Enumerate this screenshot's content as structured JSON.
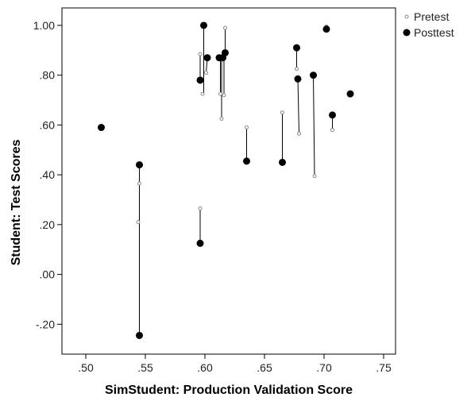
{
  "chart_data": {
    "type": "scatter",
    "xlabel": "SimStudent: Production Validation Score",
    "ylabel": "Student: Test Scores",
    "xlim": [
      0.48,
      0.76
    ],
    "ylim": [
      -0.32,
      1.07
    ],
    "x_ticks": [
      0.5,
      0.55,
      0.6,
      0.65,
      0.7,
      0.75
    ],
    "x_tick_labels": [
      ".50",
      ".55",
      ".60",
      ".65",
      ".70",
      ".75"
    ],
    "y_ticks": [
      -0.2,
      0.0,
      0.2,
      0.4,
      0.6,
      0.8,
      1.0
    ],
    "y_tick_labels": [
      "-.20",
      ".00",
      ".20",
      ".40",
      ".60",
      ".80",
      "1.00"
    ],
    "grid": false,
    "legend_position": "right, outside plot, top",
    "series": [
      {
        "name": "Pretest",
        "marker": "small open circle",
        "color": "#888888",
        "points": [
          [
            0.545,
            0.365
          ],
          [
            0.544,
            0.21
          ],
          [
            0.596,
            0.265
          ],
          [
            0.596,
            0.885
          ],
          [
            0.598,
            0.725
          ],
          [
            0.601,
            0.81
          ],
          [
            0.613,
            0.725
          ],
          [
            0.614,
            0.625
          ],
          [
            0.616,
            0.72
          ],
          [
            0.617,
            0.99
          ],
          [
            0.635,
            0.59
          ],
          [
            0.665,
            0.65
          ],
          [
            0.677,
            0.825
          ],
          [
            0.679,
            0.565
          ],
          [
            0.692,
            0.395
          ],
          [
            0.702,
            0.995
          ],
          [
            0.707,
            0.58
          ]
        ]
      },
      {
        "name": "Posttest",
        "marker": "filled circle",
        "color": "#000000",
        "points": [
          [
            0.513,
            0.59
          ],
          [
            0.545,
            0.44
          ],
          [
            0.545,
            -0.245
          ],
          [
            0.596,
            0.125
          ],
          [
            0.596,
            0.78
          ],
          [
            0.599,
            1.0
          ],
          [
            0.602,
            0.87
          ],
          [
            0.612,
            0.87
          ],
          [
            0.615,
            0.87
          ],
          [
            0.617,
            0.89
          ],
          [
            0.635,
            0.455
          ],
          [
            0.665,
            0.45
          ],
          [
            0.677,
            0.91
          ],
          [
            0.678,
            0.785
          ],
          [
            0.691,
            0.8
          ],
          [
            0.702,
            0.985
          ],
          [
            0.707,
            0.64
          ],
          [
            0.722,
            0.725
          ]
        ]
      }
    ],
    "connectors": [
      [
        0.545,
        0.44,
        0.545,
        -0.245
      ],
      [
        0.596,
        0.265,
        0.596,
        0.125
      ],
      [
        0.596,
        0.885,
        0.596,
        0.78
      ],
      [
        0.599,
        1.0,
        0.599,
        0.725
      ],
      [
        0.601,
        0.81,
        0.602,
        0.87
      ],
      [
        0.613,
        0.87,
        0.613,
        0.725
      ],
      [
        0.614,
        0.87,
        0.614,
        0.625
      ],
      [
        0.616,
        0.87,
        0.616,
        0.72
      ],
      [
        0.617,
        0.99,
        0.617,
        0.89
      ],
      [
        0.635,
        0.59,
        0.635,
        0.455
      ],
      [
        0.665,
        0.65,
        0.665,
        0.45
      ],
      [
        0.677,
        0.91,
        0.677,
        0.825
      ],
      [
        0.678,
        0.785,
        0.679,
        0.565
      ],
      [
        0.691,
        0.8,
        0.692,
        0.395
      ],
      [
        0.702,
        0.995,
        0.702,
        0.985
      ],
      [
        0.707,
        0.64,
        0.707,
        0.58
      ]
    ]
  }
}
